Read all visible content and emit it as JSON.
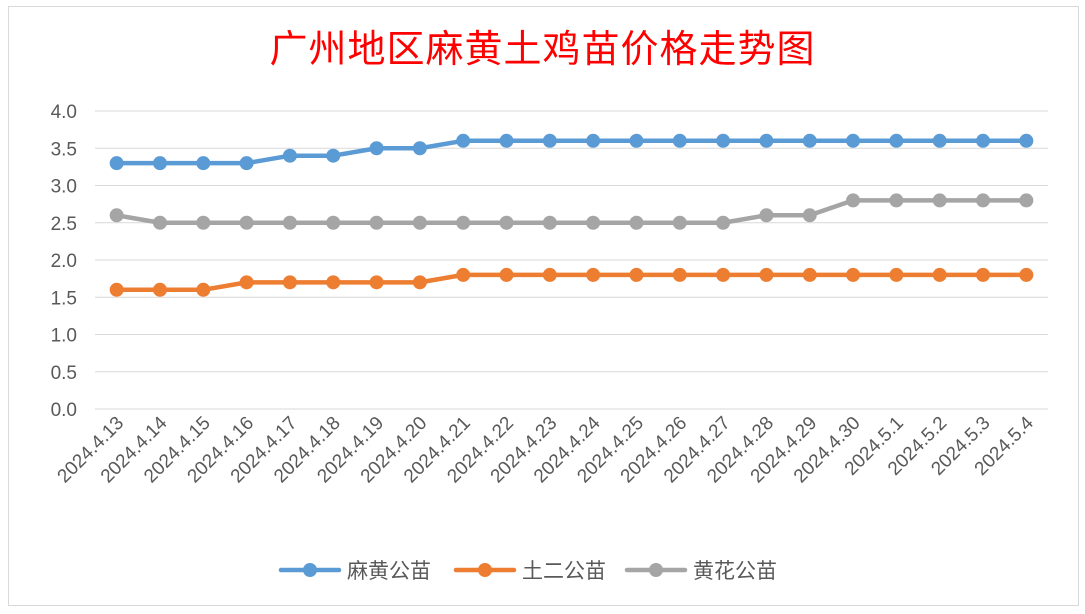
{
  "chart_data": {
    "type": "line",
    "title": "广州地区麻黄土鸡苗价格走势图",
    "xlabel": "",
    "ylabel": "",
    "ylim": [
      0,
      4
    ],
    "yticks": [
      "0.0",
      "0.5",
      "1.0",
      "1.5",
      "2.0",
      "2.5",
      "3.0",
      "3.5",
      "4.0"
    ],
    "grid": true,
    "legend_position": "bottom",
    "categories": [
      "2024.4.13",
      "2024.4.14",
      "2024.4.15",
      "2024.4.16",
      "2024.4.17",
      "2024.4.18",
      "2024.4.19",
      "2024.4.20",
      "2024.4.21",
      "2024.4.22",
      "2024.4.23",
      "2024.4.24",
      "2024.4.25",
      "2024.4.26",
      "2024.4.27",
      "2024.4.28",
      "2024.4.29",
      "2024.4.30",
      "2024.5.1",
      "2024.5.2",
      "2024.5.3",
      "2024.5.4"
    ],
    "series": [
      {
        "name": "麻黄公苗",
        "color": "#5b9bd5",
        "values": [
          3.3,
          3.3,
          3.3,
          3.3,
          3.4,
          3.4,
          3.5,
          3.5,
          3.6,
          3.6,
          3.6,
          3.6,
          3.6,
          3.6,
          3.6,
          3.6,
          3.6,
          3.6,
          3.6,
          3.6,
          3.6,
          3.6
        ]
      },
      {
        "name": "土二公苗",
        "color": "#ed7d31",
        "values": [
          1.6,
          1.6,
          1.6,
          1.7,
          1.7,
          1.7,
          1.7,
          1.7,
          1.8,
          1.8,
          1.8,
          1.8,
          1.8,
          1.8,
          1.8,
          1.8,
          1.8,
          1.8,
          1.8,
          1.8,
          1.8,
          1.8
        ]
      },
      {
        "name": "黄花公苗",
        "color": "#a5a5a5",
        "values": [
          2.6,
          2.5,
          2.5,
          2.5,
          2.5,
          2.5,
          2.5,
          2.5,
          2.5,
          2.5,
          2.5,
          2.5,
          2.5,
          2.5,
          2.5,
          2.6,
          2.6,
          2.8,
          2.8,
          2.8,
          2.8,
          2.8
        ]
      }
    ]
  }
}
